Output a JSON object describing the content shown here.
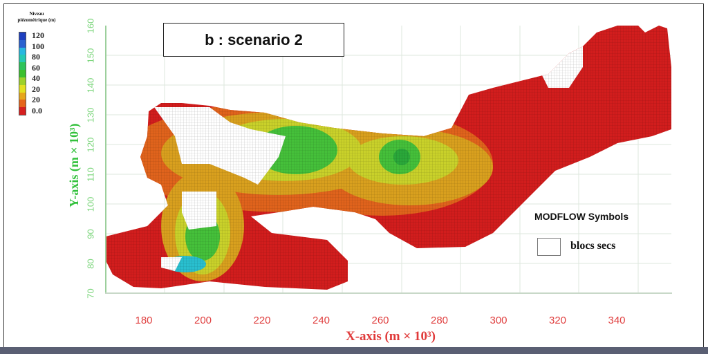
{
  "figure": {
    "title": "b : scenario 2",
    "legend": {
      "title_line1": "Niveau",
      "title_line2": "piézométrique (m)",
      "labels": [
        "120",
        "100",
        "80",
        "60",
        "40",
        "20",
        "20",
        "0.0"
      ],
      "colors": [
        "#1e3fbf",
        "#2a62d0",
        "#27b7e0",
        "#25c9b3",
        "#2fc35a",
        "#3cc02e",
        "#9dd12a",
        "#e3e021",
        "#e6a61c",
        "#e5651b",
        "#d62020"
      ]
    },
    "symbols_legend": {
      "title": "MODFLOW Symbols",
      "items": [
        {
          "label": "blocs secs",
          "color": "#ffffff"
        }
      ]
    }
  },
  "chart_data": {
    "type": "heatmap",
    "title": "b : scenario 2",
    "xlabel": "X-axis (m × 10³)",
    "ylabel": "Y-axis (m × 10³)",
    "xticks": [
      180,
      200,
      220,
      240,
      260,
      280,
      300,
      320,
      340
    ],
    "yticks": [
      70,
      80,
      90,
      100,
      110,
      120,
      130,
      140,
      150,
      160
    ],
    "xlim": [
      160,
      350
    ],
    "ylim": [
      70,
      160
    ],
    "grid": true,
    "colorbar": {
      "title": "Niveau piézométrique (m)",
      "tick_labels": [
        "120",
        "100",
        "80",
        "60",
        "40",
        "20",
        "20",
        "0.0"
      ],
      "range": [
        0,
        120
      ]
    },
    "annotations": [
      {
        "text": "MODFLOW Symbols",
        "x": 310,
        "y": 98
      },
      {
        "text": "blocs secs",
        "meaning": "dry cells (white)"
      }
    ],
    "features": [
      {
        "description": "Peak piezometric level ~60-70 m centered near",
        "x": 261,
        "y": 114
      },
      {
        "description": "Green high area ~40-60 m",
        "x": 225,
        "y": 115
      },
      {
        "description": "Cyan high area ~70-80 m near SW",
        "x": 190,
        "y": 79
      },
      {
        "description": "Low (0-20 m) red zones along coast and eastern region",
        "x_range": [
          280,
          350
        ],
        "y_range": [
          110,
          160
        ]
      }
    ]
  },
  "axes": {
    "x_ticks": [
      "180",
      "200",
      "220",
      "240",
      "260",
      "280",
      "300",
      "320",
      "340"
    ],
    "y_ticks": [
      "70",
      "80",
      "90",
      "100",
      "110",
      "120",
      "130",
      "140",
      "150",
      "160"
    ],
    "x_title": "X-axis (m × 10³)",
    "y_title": "Y-axis (m × 10³)"
  }
}
